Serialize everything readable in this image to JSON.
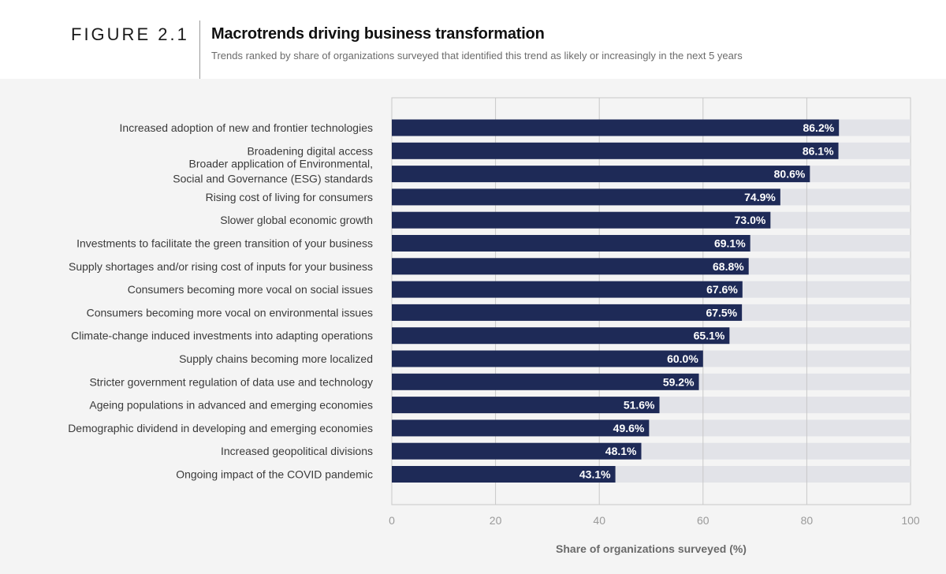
{
  "figure_label": "FIGURE 2.1",
  "chart_data": {
    "type": "bar",
    "orientation": "horizontal",
    "title": "Macrotrends driving business transformation",
    "subtitle": "Trends ranked by share of organizations surveyed that identified this trend as likely or increasingly in the next 5 years",
    "xlabel": "Share of organizations surveyed (%)",
    "ylabel": "",
    "xlim": [
      0,
      100
    ],
    "xticks": [
      0,
      20,
      40,
      60,
      80,
      100
    ],
    "grid": true,
    "categories": [
      [
        "Increased adoption of new and frontier technologies"
      ],
      [
        "Broadening digital access"
      ],
      [
        "Broader application of Environmental,",
        "Social and Governance (ESG) standards"
      ],
      [
        "Rising cost of living for consumers"
      ],
      [
        "Slower global economic growth"
      ],
      [
        "Investments to facilitate the green transition of your business"
      ],
      [
        "Supply shortages and/or rising cost of inputs for your business"
      ],
      [
        "Consumers becoming more vocal on social issues"
      ],
      [
        "Consumers becoming more vocal on environmental issues"
      ],
      [
        "Climate-change induced investments into adapting operations"
      ],
      [
        "Supply chains becoming more localized"
      ],
      [
        "Stricter government regulation of data use and technology"
      ],
      [
        "Ageing populations in advanced and emerging economies"
      ],
      [
        "Demographic dividend in developing and emerging economies"
      ],
      [
        "Increased geopolitical divisions"
      ],
      [
        "Ongoing impact of the COVID pandemic"
      ]
    ],
    "values": [
      86.2,
      86.1,
      80.6,
      74.9,
      73.0,
      69.1,
      68.8,
      67.6,
      67.5,
      65.1,
      60.0,
      59.2,
      51.6,
      49.6,
      48.1,
      43.1
    ],
    "value_labels": [
      "86.2%",
      "86.1%",
      "80.6%",
      "74.9%",
      "73.0%",
      "69.1%",
      "68.8%",
      "67.6%",
      "67.5%",
      "65.1%",
      "60.0%",
      "59.2%",
      "51.6%",
      "49.6%",
      "48.1%",
      "43.1%"
    ],
    "colors": {
      "bar": "#1e2a57",
      "track": "#e2e3e8",
      "plot_bg": "#f4f4f4",
      "grid": "#c8c8c8",
      "label": "#3a3a3a",
      "axis_text": "#9a9a9a"
    }
  }
}
